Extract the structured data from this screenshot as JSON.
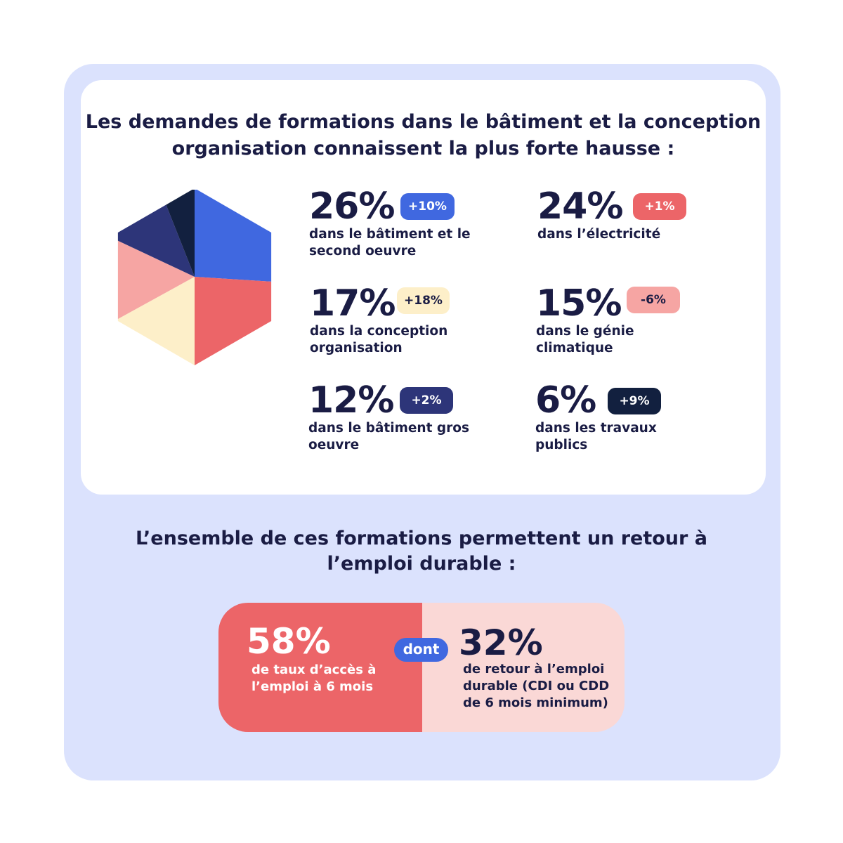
{
  "title": "Les demandes de formations dans le bâtiment et la conception organisation connaissent la plus forte hausse :",
  "chart_data": {
    "type": "pie",
    "slices": [
      {
        "value": 26,
        "label": "dans le bâtiment et le second oeuvre",
        "change": "+10%",
        "color": "#4068e0"
      },
      {
        "value": 24,
        "label": "dans l’électricité",
        "change": "+1%",
        "color": "#ec6568"
      },
      {
        "value": 17,
        "label": "dans la conception organisation",
        "change": "+18%",
        "color": "#fdefc9"
      },
      {
        "value": 15,
        "label": "dans le génie climatique",
        "change": "-6%",
        "color": "#f6a5a3"
      },
      {
        "value": 12,
        "label": "dans le bâtiment gros oeuvre",
        "change": "+2%",
        "color": "#2d3579"
      },
      {
        "value": 6,
        "label": "dans les travaux publics",
        "change": "+9%",
        "color": "#12203f"
      }
    ]
  },
  "stats": [
    {
      "pct": "26%",
      "badge": "+10%",
      "desc": "dans le bâtiment et le second oeuvre",
      "badge_bg": "#4068e0",
      "badge_fg": "#ffffff"
    },
    {
      "pct": "24%",
      "badge": "+1%",
      "desc": "dans l’électricité",
      "badge_bg": "#ec6568",
      "badge_fg": "#ffffff"
    },
    {
      "pct": "17%",
      "badge": "+18%",
      "desc": "dans la conception organisation",
      "badge_bg": "#fdefc9",
      "badge_fg": "#1a1c44"
    },
    {
      "pct": "15%",
      "badge": "-6%",
      "desc": "dans le génie climatique",
      "badge_bg": "#f6a5a3",
      "badge_fg": "#1a1c44"
    },
    {
      "pct": "12%",
      "badge": "+2%",
      "desc": "dans le bâtiment gros oeuvre",
      "badge_bg": "#2d3579",
      "badge_fg": "#ffffff"
    },
    {
      "pct": "6%",
      "badge": "+9%",
      "desc": "dans les travaux publics",
      "badge_bg": "#12203f",
      "badge_fg": "#ffffff"
    }
  ],
  "subtitle": "L’ensemble de ces formations permettent un retour à l’emploi durable :",
  "employment": {
    "left_value": "58%",
    "left_text": "de taux d’accès à l’emploi à 6 mois",
    "connector": "dont",
    "right_value": "32%",
    "right_text": "de retour à l’emploi durable (CDI ou CDD de 6 mois minimum)",
    "left_color": "#ec6568",
    "right_color": "#fad8d6",
    "connector_color": "#4068e0"
  },
  "colors": {
    "background": "#dbe2fd",
    "card": "#ffffff",
    "text": "#1a1c44"
  }
}
